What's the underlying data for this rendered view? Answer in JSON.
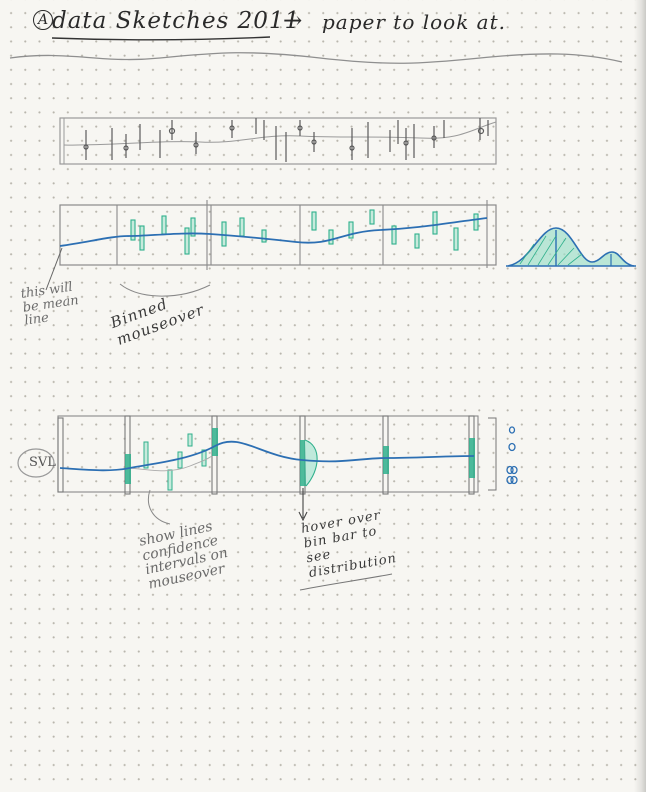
{
  "title": {
    "circled_letter": "A",
    "text": "data Sketches 2011",
    "arrow": "→",
    "tail": "paper to look at."
  },
  "annotations": {
    "mean_line_note": "this will be mean line",
    "binned_note": "Binned mouseover",
    "confidence_note": "show lines confidence intervals on mouseover",
    "hover_note": "hover over bin bar to see distribution",
    "svl_label": "SVL"
  },
  "colors": {
    "ink": "#2a2a2a",
    "pencil": "#8a8a8a",
    "blue": "#2c6fb3",
    "teal": "#2fb08c",
    "teal_fill": "#7fd3b8",
    "paper": "#f7f6f2",
    "dot_grid": "#b9b6ad"
  },
  "icons": {
    "arrow": "right-arrow-icon",
    "circle_marks": "circle-marks-icon"
  }
}
